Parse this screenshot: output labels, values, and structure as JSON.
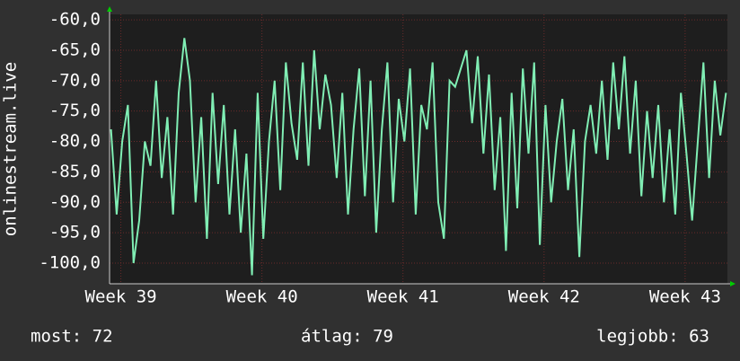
{
  "chart_data": {
    "type": "line",
    "ylabel": "onlinestream.live",
    "x": [
      38.93,
      38.97,
      39.01,
      39.05,
      39.09,
      39.13,
      39.17,
      39.21,
      39.25,
      39.29,
      39.33,
      39.37,
      39.41,
      39.45,
      39.49,
      39.53,
      39.57,
      39.61,
      39.65,
      39.69,
      39.73,
      39.77,
      39.81,
      39.85,
      39.89,
      39.93,
      39.97,
      40.01,
      40.05,
      40.09,
      40.13,
      40.17,
      40.21,
      40.25,
      40.29,
      40.33,
      40.37,
      40.41,
      40.45,
      40.49,
      40.53,
      40.57,
      40.61,
      40.65,
      40.69,
      40.73,
      40.77,
      40.81,
      40.85,
      40.89,
      40.93,
      40.97,
      41.01,
      41.05,
      41.09,
      41.13,
      41.17,
      41.21,
      41.25,
      41.29,
      41.33,
      41.37,
      41.41,
      41.45,
      41.49,
      41.53,
      41.57,
      41.61,
      41.65,
      41.69,
      41.73,
      41.77,
      41.81,
      41.85,
      41.89,
      41.93,
      41.97,
      42.01,
      42.05,
      42.09,
      42.13,
      42.17,
      42.21,
      42.25,
      42.29,
      42.33,
      42.37,
      42.41,
      42.45,
      42.49,
      42.53,
      42.57,
      42.61,
      42.65,
      42.69,
      42.73,
      42.77,
      42.81,
      42.85,
      42.89,
      42.93,
      42.97,
      43.01,
      43.05,
      43.09,
      43.13,
      43.17,
      43.21,
      43.25,
      43.29
    ],
    "series": [
      {
        "color": "#80eeb4",
        "values": [
          -78,
          -92,
          -80,
          -74,
          -100,
          -93,
          -80,
          -84,
          -70,
          -86,
          -76,
          -92,
          -72,
          -63,
          -70,
          -90,
          -76,
          -96,
          -72,
          -87,
          -74,
          -92,
          -78,
          -95,
          -82,
          -102,
          -72,
          -96,
          -80,
          -70,
          -88,
          -67,
          -77,
          -83,
          -67,
          -84,
          -65,
          -78,
          -69,
          -74,
          -86,
          -72,
          -92,
          -78,
          -68,
          -89,
          -70,
          -95,
          -78,
          -67,
          -90,
          -73,
          -80,
          -68,
          -92,
          -74,
          -78,
          -67,
          -90,
          -96,
          -70,
          -71,
          -68,
          -65,
          -77,
          -66,
          -82,
          -69,
          -88,
          -76,
          -98,
          -72,
          -91,
          -68,
          -82,
          -67,
          -97,
          -74,
          -90,
          -80,
          -73,
          -88,
          -78,
          -99,
          -80,
          -74,
          -82,
          -70,
          -83,
          -67,
          -78,
          -66,
          -82,
          -70,
          -89,
          -75,
          -86,
          -74,
          -90,
          -78,
          -92,
          -72,
          -82,
          -93,
          -80,
          -67,
          -86,
          -70,
          -79,
          -72
        ]
      }
    ],
    "ylim": [
      -103.4,
      -59.1
    ],
    "yticks": [
      {
        "value": -60,
        "label": "-60,0"
      },
      {
        "value": -65,
        "label": "-65,0"
      },
      {
        "value": -70,
        "label": "-70,0"
      },
      {
        "value": -75,
        "label": "-75,0"
      },
      {
        "value": -80,
        "label": "-80,0"
      },
      {
        "value": -85,
        "label": "-85,0"
      },
      {
        "value": -90,
        "label": "-90,0"
      },
      {
        "value": -95,
        "label": "-95,0"
      },
      {
        "value": -100,
        "label": "-100,0"
      }
    ],
    "xlim": [
      38.92,
      43.3
    ],
    "xticks": [
      {
        "value": 39,
        "label": "Week 39"
      },
      {
        "value": 40,
        "label": "Week 40"
      },
      {
        "value": 41,
        "label": "Week 41"
      },
      {
        "value": 42,
        "label": "Week 42"
      },
      {
        "value": 43,
        "label": "Week 43"
      }
    ],
    "grid": true,
    "stats": [
      "most: 72",
      "átlag: 79",
      "legjobb: 63"
    ]
  }
}
